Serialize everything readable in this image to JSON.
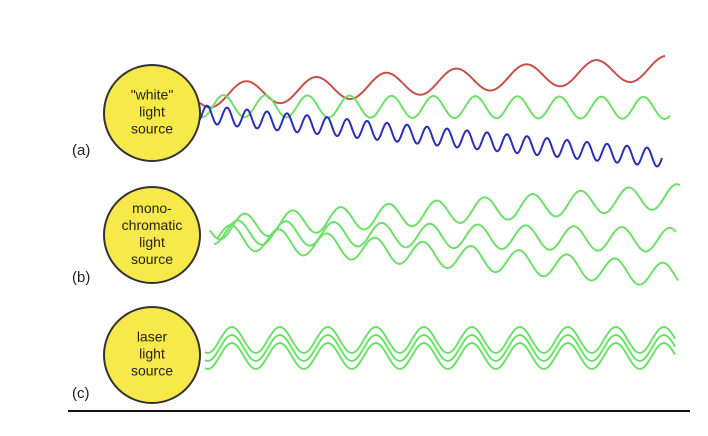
{
  "panels": [
    {
      "label": "(a)",
      "source": [
        "\"white\"",
        "light",
        "source"
      ]
    },
    {
      "label": "(b)",
      "source": [
        "mono-",
        "chromatic",
        "light",
        "source"
      ]
    },
    {
      "label": "(c)",
      "source": [
        "laser",
        "light",
        "source"
      ]
    }
  ]
}
